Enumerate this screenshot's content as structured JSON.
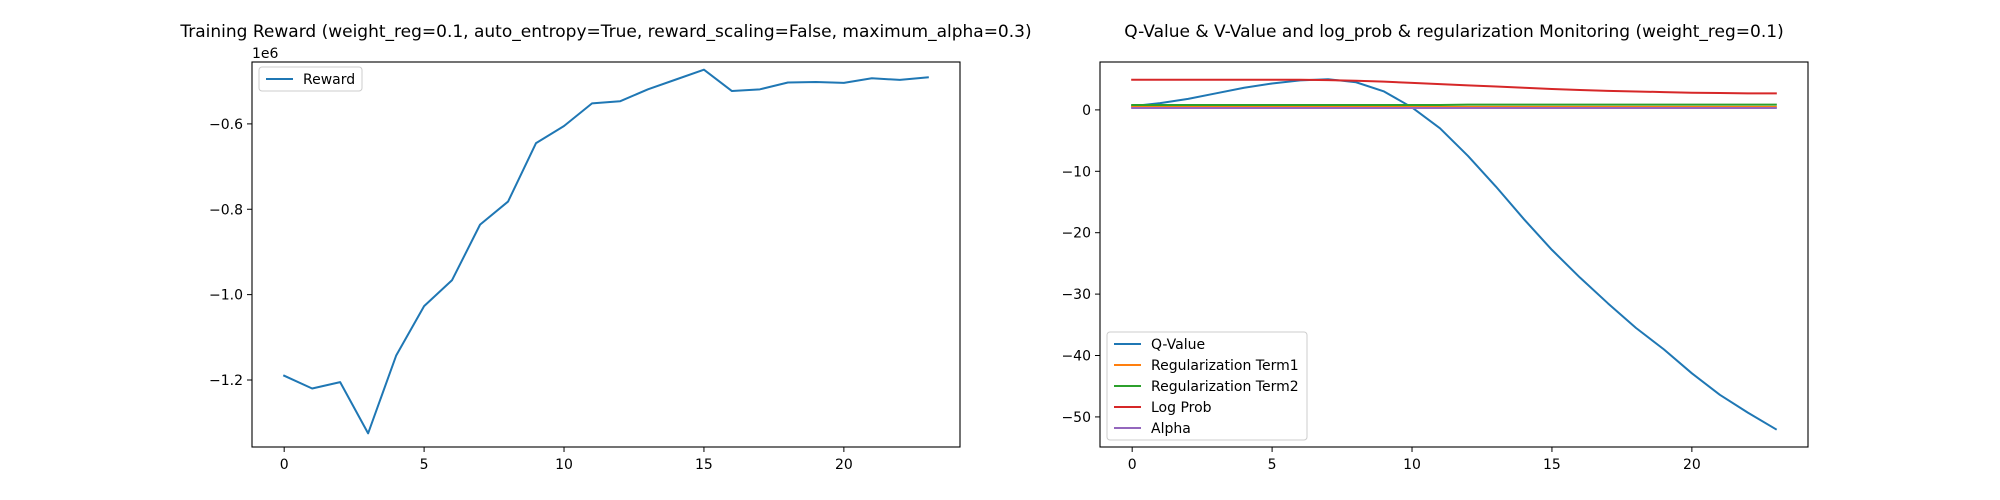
{
  "figure": {
    "background": "#ffffff"
  },
  "chart_data": [
    {
      "type": "line",
      "title": "Training Reward (weight_reg=0.1, auto_entropy=True, reward_scaling=False, maximum_alpha=0.3)",
      "xlabel": "",
      "ylabel": "",
      "y_offset_label": "1e6",
      "xlim": [
        -1.15,
        24.15
      ],
      "ylim": [
        -1.357,
        -0.455
      ],
      "x_ticks": [
        0,
        5,
        10,
        15,
        20
      ],
      "x_tick_labels": [
        "0",
        "5",
        "10",
        "15",
        "20"
      ],
      "y_ticks": [
        -1.2,
        -1.0,
        -0.8,
        -0.6
      ],
      "y_tick_labels": [
        "−1.2",
        "−1.0",
        "−0.8",
        "−0.6"
      ],
      "grid": false,
      "legend_position": "upper left",
      "x": [
        0,
        1,
        2,
        3,
        4,
        5,
        6,
        7,
        8,
        9,
        10,
        11,
        12,
        13,
        14,
        15,
        16,
        17,
        18,
        19,
        20,
        21,
        22,
        23
      ],
      "series": [
        {
          "name": "Reward",
          "color": "#1f77b4",
          "values": [
            -1.19,
            -1.22,
            -1.205,
            -1.325,
            -1.143,
            -1.027,
            -0.966,
            -0.836,
            -0.782,
            -0.645,
            -0.605,
            -0.552,
            -0.547,
            -0.519,
            -0.496,
            -0.473,
            -0.523,
            -0.519,
            -0.503,
            -0.502,
            -0.504,
            -0.493,
            -0.497,
            -0.491
          ]
        }
      ]
    },
    {
      "type": "line",
      "title": "Q-Value & V-Value and log_prob & regularization Monitoring (weight_reg=0.1)",
      "xlabel": "",
      "ylabel": "",
      "xlim": [
        -1.15,
        24.15
      ],
      "ylim": [
        -54.9,
        7.8
      ],
      "x_ticks": [
        0,
        5,
        10,
        15,
        20
      ],
      "x_tick_labels": [
        "0",
        "5",
        "10",
        "15",
        "20"
      ],
      "y_ticks": [
        0,
        -10,
        -20,
        -30,
        -40,
        -50
      ],
      "y_tick_labels": [
        "0",
        "−10",
        "−20",
        "−30",
        "−40",
        "−50"
      ],
      "grid": false,
      "legend_position": "lower left",
      "x": [
        0,
        1,
        2,
        3,
        4,
        5,
        6,
        7,
        8,
        9,
        10,
        11,
        12,
        13,
        14,
        15,
        16,
        17,
        18,
        19,
        20,
        21,
        22,
        23
      ],
      "series": [
        {
          "name": "Q-Value",
          "color": "#1f77b4",
          "values": [
            0.6,
            1.1,
            1.8,
            2.7,
            3.6,
            4.3,
            4.8,
            5.0,
            4.5,
            3.0,
            0.4,
            -3.0,
            -7.5,
            -12.5,
            -17.8,
            -22.8,
            -27.3,
            -31.5,
            -35.5,
            -39.0,
            -42.9,
            -46.4,
            -49.3,
            -52.0
          ]
        },
        {
          "name": "Regularization Term1",
          "color": "#ff7f0e",
          "values": [
            0.5,
            0.5,
            0.5,
            0.5,
            0.5,
            0.5,
            0.5,
            0.5,
            0.5,
            0.5,
            0.5,
            0.5,
            0.5,
            0.5,
            0.5,
            0.5,
            0.5,
            0.5,
            0.5,
            0.5,
            0.5,
            0.5,
            0.5,
            0.5
          ]
        },
        {
          "name": "Regularization Term2",
          "color": "#2ca02c",
          "values": [
            0.8,
            0.8,
            0.8,
            0.8,
            0.8,
            0.8,
            0.8,
            0.8,
            0.8,
            0.8,
            0.8,
            0.8,
            0.85,
            0.85,
            0.85,
            0.85,
            0.85,
            0.85,
            0.85,
            0.85,
            0.85,
            0.85,
            0.85,
            0.85
          ]
        },
        {
          "name": "Log Prob",
          "color": "#d62728",
          "values": [
            4.9,
            4.9,
            4.9,
            4.9,
            4.9,
            4.9,
            4.9,
            4.85,
            4.75,
            4.6,
            4.4,
            4.2,
            4.0,
            3.8,
            3.6,
            3.4,
            3.25,
            3.1,
            3.0,
            2.9,
            2.8,
            2.75,
            2.7,
            2.7
          ]
        },
        {
          "name": "Alpha",
          "color": "#9467bd",
          "values": [
            0.3,
            0.3,
            0.3,
            0.3,
            0.3,
            0.3,
            0.3,
            0.3,
            0.3,
            0.3,
            0.3,
            0.3,
            0.3,
            0.3,
            0.3,
            0.3,
            0.3,
            0.3,
            0.3,
            0.3,
            0.3,
            0.3,
            0.3,
            0.3
          ]
        }
      ]
    }
  ]
}
